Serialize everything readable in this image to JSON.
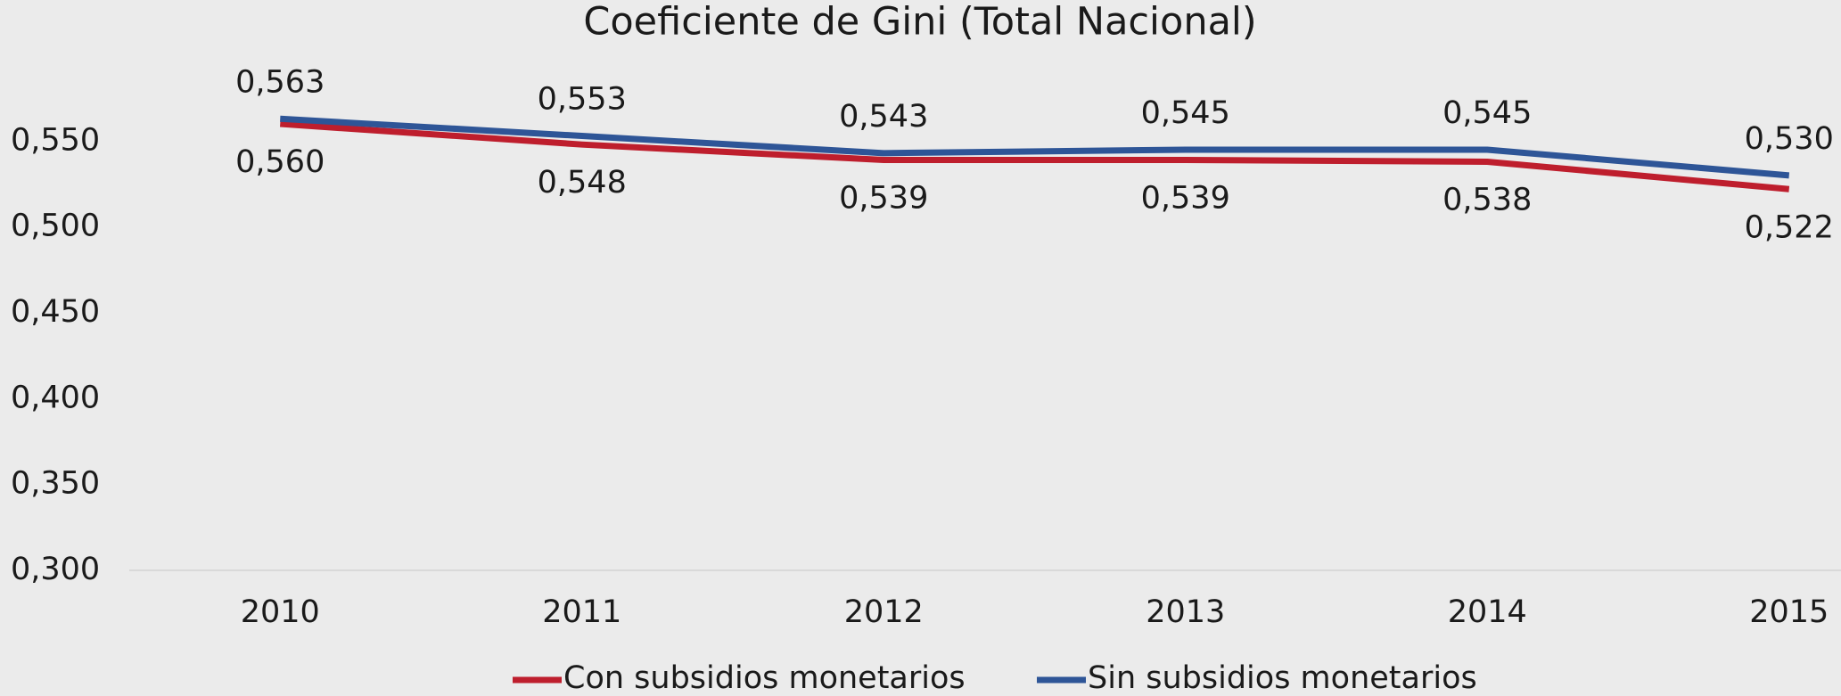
{
  "chart_data": {
    "type": "line",
    "title": "Coeficiente de Gini (Total Nacional)",
    "categories": [
      "2010",
      "2011",
      "2012",
      "2013",
      "2014",
      "2015"
    ],
    "series": [
      {
        "name": "Con subsidios monetarios",
        "color": "#be1e2d",
        "values": [
          0.56,
          0.548,
          0.539,
          0.539,
          0.538,
          0.522
        ],
        "value_labels": [
          "0,560",
          "0,548",
          "0,539",
          "0,539",
          "0,538",
          "0,522"
        ]
      },
      {
        "name": "Sin subsidios monetarios",
        "color": "#2e5597",
        "values": [
          0.563,
          0.553,
          0.543,
          0.545,
          0.545,
          0.53
        ],
        "value_labels": [
          "0,563",
          "0,553",
          "0,543",
          "0,545",
          "0,545",
          "0,530"
        ]
      }
    ],
    "ylim": [
      0.3,
      0.6
    ],
    "yticks": [
      {
        "value": 0.3,
        "label": "0,300"
      },
      {
        "value": 0.35,
        "label": "0,350"
      },
      {
        "value": 0.4,
        "label": "0,400"
      },
      {
        "value": 0.45,
        "label": "0,450"
      },
      {
        "value": 0.5,
        "label": "0,500"
      },
      {
        "value": 0.55,
        "label": "0,550"
      }
    ],
    "grid": false,
    "legend": "bottom"
  }
}
